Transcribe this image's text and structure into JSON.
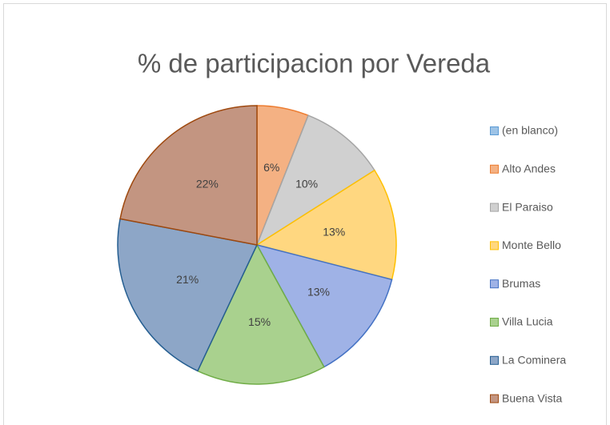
{
  "chart_data": {
    "type": "pie",
    "title": "% de participacion por Vereda",
    "categories": [
      "(en blanco)",
      "Alto Andes",
      "El Paraiso",
      "Monte Bello",
      "Brumas",
      "Villa Lucia",
      "La Cominera",
      "Buena Vista"
    ],
    "values": [
      0,
      6,
      10,
      13,
      13,
      15,
      21,
      22
    ],
    "value_labels": [
      null,
      "6%",
      "10%",
      "13%",
      "13%",
      "15%",
      "21%",
      "22%"
    ],
    "colors": [
      "#9dc3e6",
      "#f4b183",
      "#d0d0d0",
      "#ffd780",
      "#9fb2e6",
      "#a9d18e",
      "#8da6c7",
      "#c39581"
    ],
    "edge_colors": [
      "#5b9bd5",
      "#ed7d31",
      "#a5a5a5",
      "#ffc000",
      "#4472c4",
      "#70ad47",
      "#255e91",
      "#9e480e"
    ],
    "legend": "right"
  }
}
